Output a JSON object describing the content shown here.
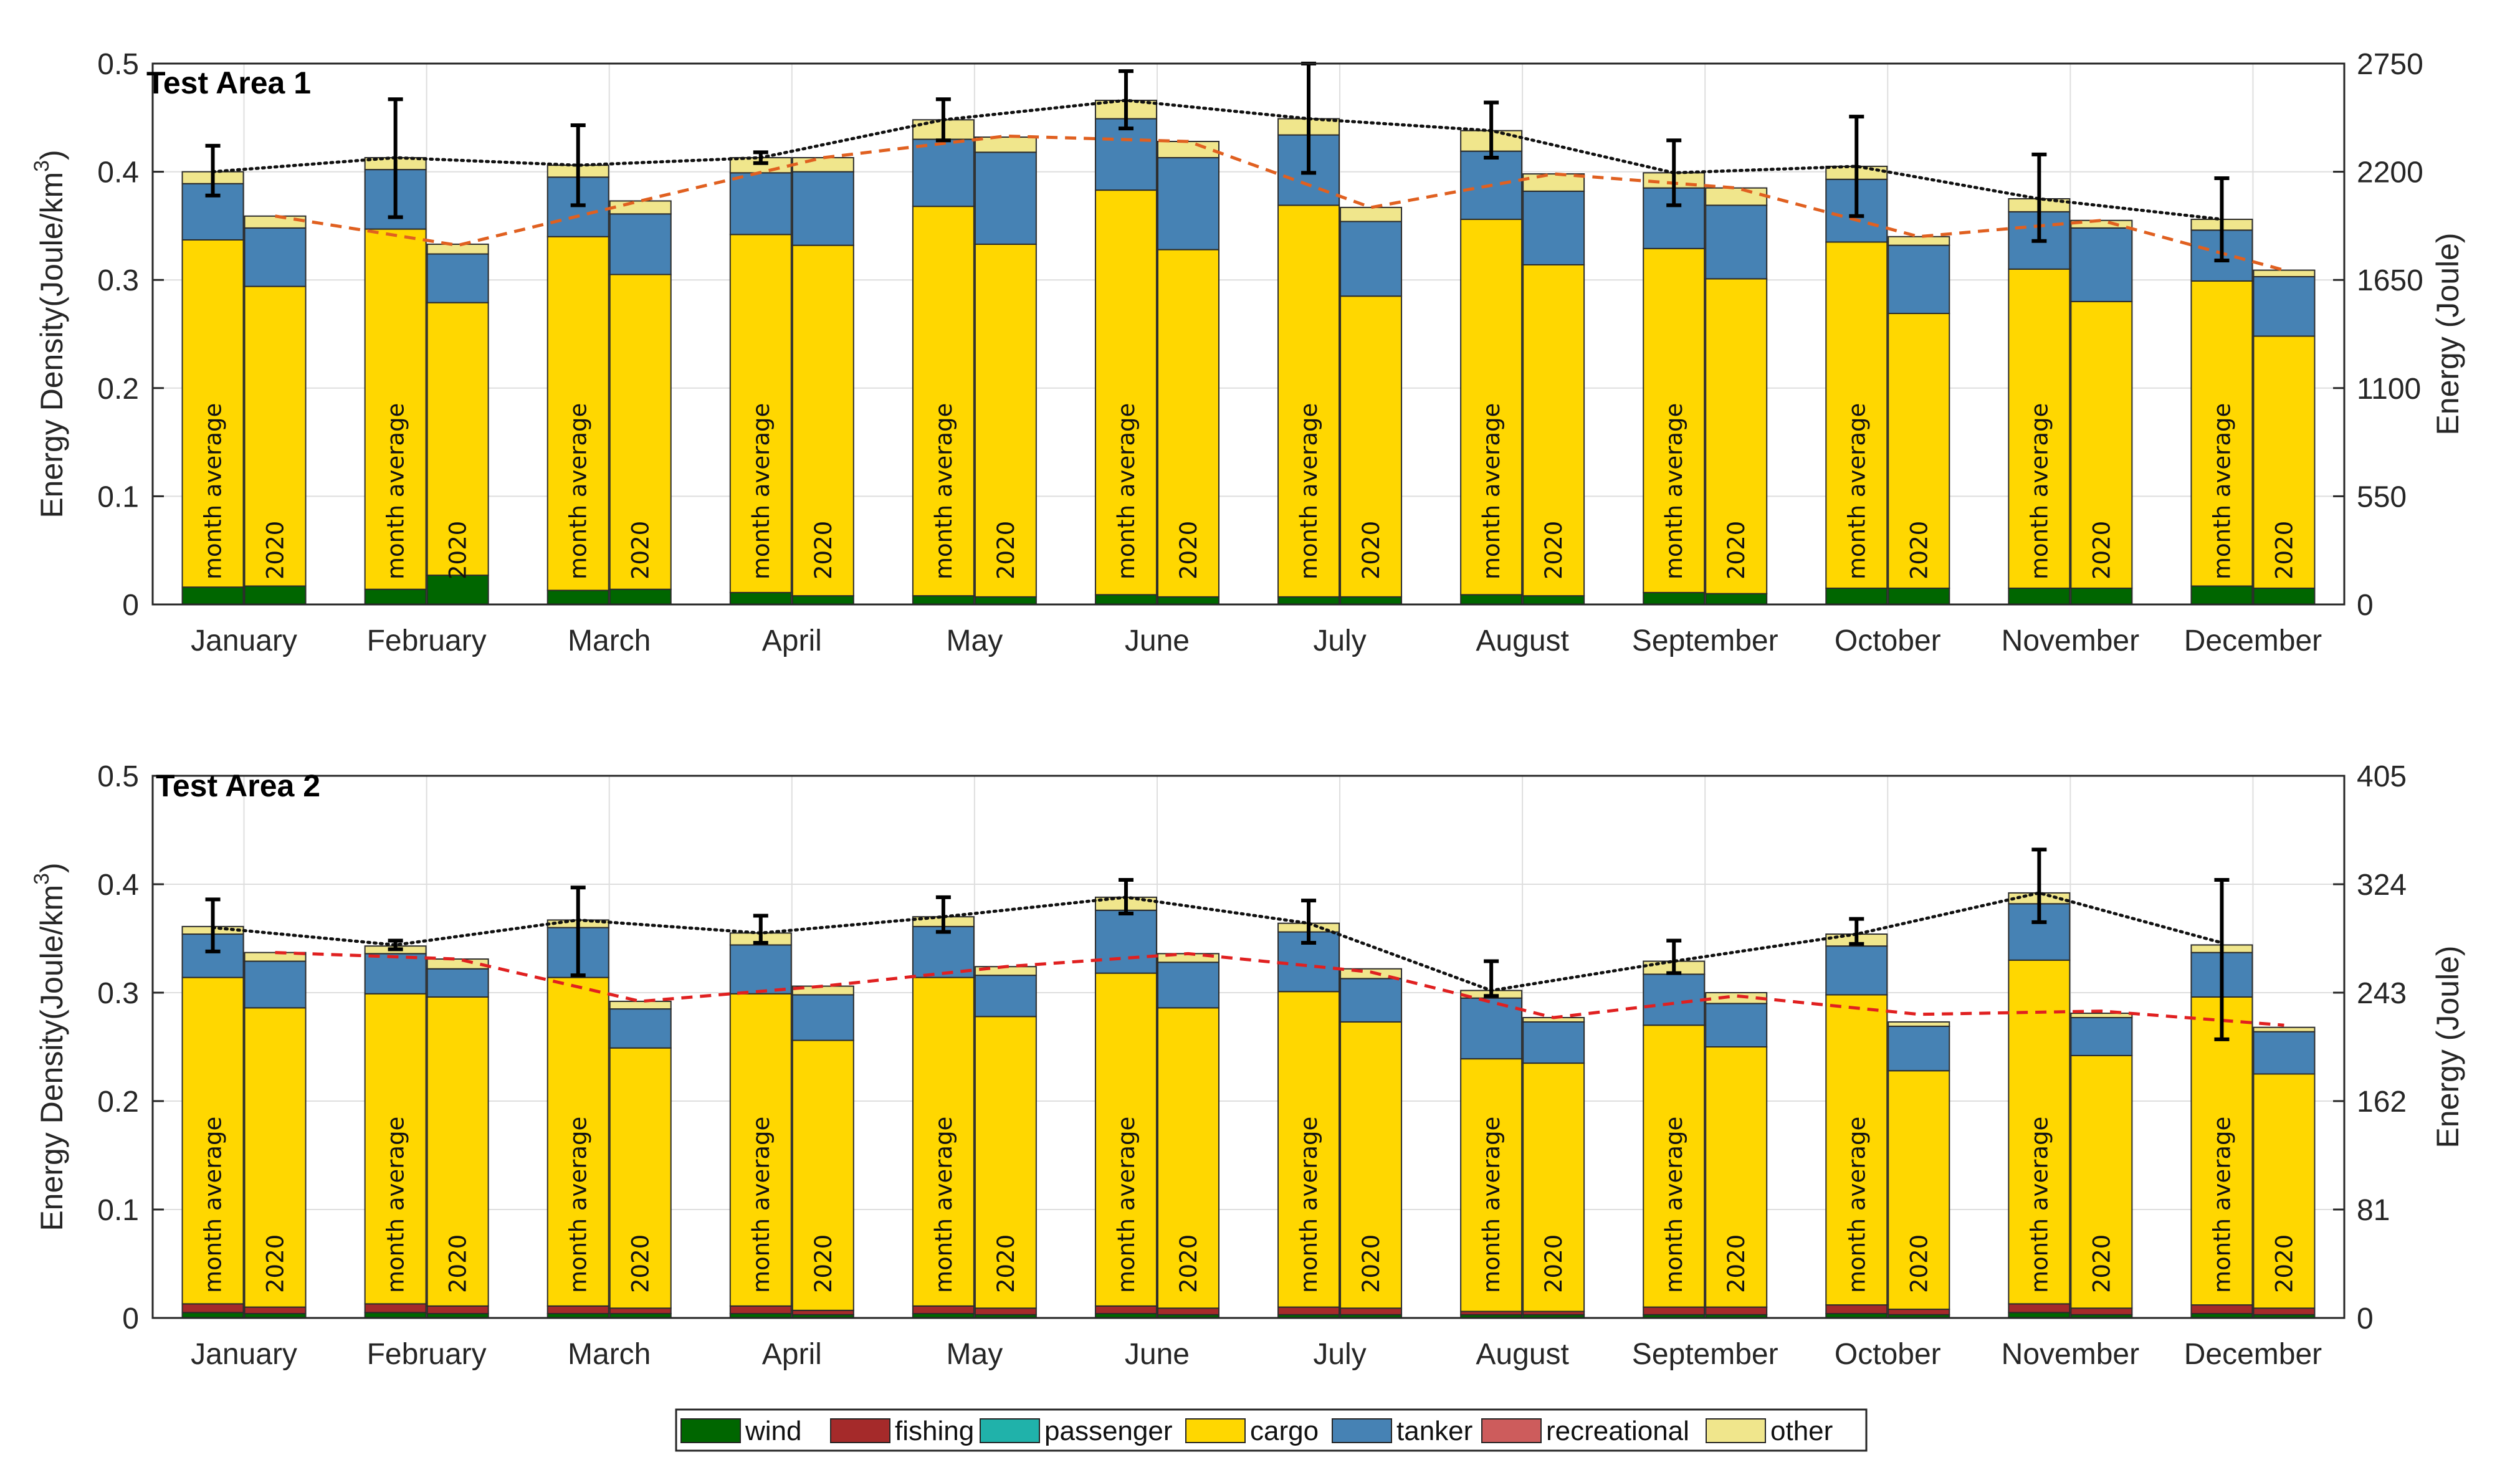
{
  "chart_data": [
    {
      "type": "bar",
      "title": "Test Area 1",
      "ylabel": "Energy Density(Joule/km³)",
      "y2label": "Energy (Joule)",
      "ylim": [
        0,
        0.5
      ],
      "y2lim": [
        0,
        2750
      ],
      "yticks": [
        "0",
        "0.1",
        "0.2",
        "0.3",
        "0.4",
        "0.5"
      ],
      "y2ticks": [
        "0",
        "550",
        "1100",
        "1650",
        "2200",
        "2750"
      ],
      "grid": true,
      "categories": [
        "January",
        "February",
        "March",
        "April",
        "May",
        "June",
        "July",
        "August",
        "September",
        "October",
        "November",
        "December"
      ],
      "bar_labels": [
        "month average",
        "2020"
      ],
      "series_order": [
        "wind",
        "fishing",
        "passenger",
        "cargo",
        "tanker",
        "recreational",
        "other"
      ],
      "month_average": [
        {
          "wind": 0.016,
          "fishing": 0.0,
          "passenger": 0.0,
          "cargo": 0.321,
          "tanker": 0.052,
          "recreational": 0.0,
          "other": 0.011
        },
        {
          "wind": 0.014,
          "fishing": 0.0,
          "passenger": 0.0,
          "cargo": 0.333,
          "tanker": 0.055,
          "recreational": 0.0,
          "other": 0.011
        },
        {
          "wind": 0.013,
          "fishing": 0.0,
          "passenger": 0.0,
          "cargo": 0.327,
          "tanker": 0.055,
          "recreational": 0.0,
          "other": 0.011
        },
        {
          "wind": 0.011,
          "fishing": 0.0,
          "passenger": 0.0,
          "cargo": 0.331,
          "tanker": 0.057,
          "recreational": 0.0,
          "other": 0.014
        },
        {
          "wind": 0.008,
          "fishing": 0.0,
          "passenger": 0.0,
          "cargo": 0.36,
          "tanker": 0.062,
          "recreational": 0.0,
          "other": 0.018
        },
        {
          "wind": 0.009,
          "fishing": 0.0,
          "passenger": 0.0,
          "cargo": 0.374,
          "tanker": 0.066,
          "recreational": 0.0,
          "other": 0.017
        },
        {
          "wind": 0.007,
          "fishing": 0.0,
          "passenger": 0.0,
          "cargo": 0.362,
          "tanker": 0.065,
          "recreational": 0.0,
          "other": 0.015
        },
        {
          "wind": 0.009,
          "fishing": 0.0,
          "passenger": 0.0,
          "cargo": 0.347,
          "tanker": 0.063,
          "recreational": 0.0,
          "other": 0.019
        },
        {
          "wind": 0.011,
          "fishing": 0.0,
          "passenger": 0.0,
          "cargo": 0.318,
          "tanker": 0.056,
          "recreational": 0.0,
          "other": 0.014
        },
        {
          "wind": 0.015,
          "fishing": 0.0,
          "passenger": 0.0,
          "cargo": 0.32,
          "tanker": 0.058,
          "recreational": 0.0,
          "other": 0.012
        },
        {
          "wind": 0.015,
          "fishing": 0.0,
          "passenger": 0.0,
          "cargo": 0.295,
          "tanker": 0.053,
          "recreational": 0.0,
          "other": 0.012
        },
        {
          "wind": 0.017,
          "fishing": 0.0,
          "passenger": 0.0,
          "cargo": 0.282,
          "tanker": 0.047,
          "recreational": 0.0,
          "other": 0.01
        }
      ],
      "year_2020": [
        {
          "wind": 0.017,
          "fishing": 0.0,
          "passenger": 0.0,
          "cargo": 0.277,
          "tanker": 0.054,
          "recreational": 0.0,
          "other": 0.011
        },
        {
          "wind": 0.027,
          "fishing": 0.0,
          "passenger": 0.0,
          "cargo": 0.252,
          "tanker": 0.045,
          "recreational": 0.0,
          "other": 0.009
        },
        {
          "wind": 0.014,
          "fishing": 0.0,
          "passenger": 0.0,
          "cargo": 0.291,
          "tanker": 0.056,
          "recreational": 0.0,
          "other": 0.012
        },
        {
          "wind": 0.008,
          "fishing": 0.0,
          "passenger": 0.0,
          "cargo": 0.324,
          "tanker": 0.068,
          "recreational": 0.0,
          "other": 0.013
        },
        {
          "wind": 0.007,
          "fishing": 0.0,
          "passenger": 0.0,
          "cargo": 0.326,
          "tanker": 0.085,
          "recreational": 0.0,
          "other": 0.014
        },
        {
          "wind": 0.007,
          "fishing": 0.0,
          "passenger": 0.0,
          "cargo": 0.321,
          "tanker": 0.085,
          "recreational": 0.0,
          "other": 0.015
        },
        {
          "wind": 0.007,
          "fishing": 0.0,
          "passenger": 0.0,
          "cargo": 0.278,
          "tanker": 0.069,
          "recreational": 0.0,
          "other": 0.013
        },
        {
          "wind": 0.008,
          "fishing": 0.0,
          "passenger": 0.0,
          "cargo": 0.306,
          "tanker": 0.068,
          "recreational": 0.0,
          "other": 0.016
        },
        {
          "wind": 0.01,
          "fishing": 0.0,
          "passenger": 0.0,
          "cargo": 0.291,
          "tanker": 0.068,
          "recreational": 0.0,
          "other": 0.016
        },
        {
          "wind": 0.015,
          "fishing": 0.0,
          "passenger": 0.0,
          "cargo": 0.254,
          "tanker": 0.063,
          "recreational": 0.0,
          "other": 0.008
        },
        {
          "wind": 0.015,
          "fishing": 0.0,
          "passenger": 0.0,
          "cargo": 0.265,
          "tanker": 0.068,
          "recreational": 0.0,
          "other": 0.007
        },
        {
          "wind": 0.015,
          "fishing": 0.0,
          "passenger": 0.0,
          "cargo": 0.233,
          "tanker": 0.055,
          "recreational": 0.0,
          "other": 0.006
        }
      ],
      "error_bars": [
        {
          "center": 0.4,
          "low": 0.378,
          "high": 0.424
        },
        {
          "center": 0.413,
          "low": 0.358,
          "high": 0.467
        },
        {
          "center": 0.406,
          "low": 0.369,
          "high": 0.443
        },
        {
          "center": 0.413,
          "low": 0.408,
          "high": 0.418
        },
        {
          "center": 0.448,
          "low": 0.429,
          "high": 0.467
        },
        {
          "center": 0.466,
          "low": 0.44,
          "high": 0.493
        },
        {
          "center": 0.449,
          "low": 0.399,
          "high": 0.5
        },
        {
          "center": 0.438,
          "low": 0.413,
          "high": 0.464
        },
        {
          "center": 0.399,
          "low": 0.369,
          "high": 0.429
        },
        {
          "center": 0.405,
          "low": 0.359,
          "high": 0.451
        },
        {
          "center": 0.375,
          "low": 0.336,
          "high": 0.416
        },
        {
          "center": 0.356,
          "low": 0.318,
          "high": 0.394
        }
      ],
      "red_dashed_line": [
        0.359,
        0.332,
        0.373,
        0.413,
        0.433,
        0.428,
        0.367,
        0.398,
        0.385,
        0.34,
        0.355,
        0.309
      ],
      "legend": "bottom"
    },
    {
      "type": "bar",
      "title": "Test Area 2",
      "ylabel": "Energy Density(Joule/km³)",
      "y2label": "Energy (Joule)",
      "ylim": [
        0,
        0.5
      ],
      "y2lim": [
        0,
        405
      ],
      "yticks": [
        "0",
        "0.1",
        "0.2",
        "0.3",
        "0.4",
        "0.5"
      ],
      "y2ticks": [
        "0",
        "81",
        "162",
        "243",
        "324",
        "405"
      ],
      "grid": true,
      "categories": [
        "January",
        "February",
        "March",
        "April",
        "May",
        "June",
        "July",
        "August",
        "September",
        "October",
        "November",
        "December"
      ],
      "bar_labels": [
        "month average",
        "2020"
      ],
      "series_order": [
        "wind",
        "fishing",
        "passenger",
        "cargo",
        "tanker",
        "recreational",
        "other"
      ],
      "month_average": [
        {
          "wind": 0.005,
          "fishing": 0.008,
          "passenger": 0.0,
          "cargo": 0.301,
          "tanker": 0.04,
          "recreational": 0.0,
          "other": 0.007
        },
        {
          "wind": 0.005,
          "fishing": 0.008,
          "passenger": 0.0,
          "cargo": 0.286,
          "tanker": 0.037,
          "recreational": 0.0,
          "other": 0.007
        },
        {
          "wind": 0.004,
          "fishing": 0.007,
          "passenger": 0.0,
          "cargo": 0.303,
          "tanker": 0.046,
          "recreational": 0.0,
          "other": 0.007
        },
        {
          "wind": 0.004,
          "fishing": 0.007,
          "passenger": 0.0,
          "cargo": 0.288,
          "tanker": 0.045,
          "recreational": 0.0,
          "other": 0.011
        },
        {
          "wind": 0.004,
          "fishing": 0.007,
          "passenger": 0.0,
          "cargo": 0.303,
          "tanker": 0.047,
          "recreational": 0.0,
          "other": 0.009
        },
        {
          "wind": 0.004,
          "fishing": 0.007,
          "passenger": 0.0,
          "cargo": 0.307,
          "tanker": 0.058,
          "recreational": 0.0,
          "other": 0.012
        },
        {
          "wind": 0.003,
          "fishing": 0.007,
          "passenger": 0.0,
          "cargo": 0.291,
          "tanker": 0.055,
          "recreational": 0.0,
          "other": 0.008
        },
        {
          "wind": 0.003,
          "fishing": 0.003,
          "passenger": 0.0,
          "cargo": 0.233,
          "tanker": 0.056,
          "recreational": 0.0,
          "other": 0.007
        },
        {
          "wind": 0.003,
          "fishing": 0.007,
          "passenger": 0.0,
          "cargo": 0.26,
          "tanker": 0.047,
          "recreational": 0.0,
          "other": 0.012
        },
        {
          "wind": 0.004,
          "fishing": 0.008,
          "passenger": 0.0,
          "cargo": 0.286,
          "tanker": 0.045,
          "recreational": 0.0,
          "other": 0.011
        },
        {
          "wind": 0.005,
          "fishing": 0.008,
          "passenger": 0.0,
          "cargo": 0.317,
          "tanker": 0.052,
          "recreational": 0.0,
          "other": 0.01
        },
        {
          "wind": 0.004,
          "fishing": 0.008,
          "passenger": 0.0,
          "cargo": 0.284,
          "tanker": 0.041,
          "recreational": 0.0,
          "other": 0.007
        }
      ],
      "year_2020": [
        {
          "wind": 0.004,
          "fishing": 0.006,
          "passenger": 0.0,
          "cargo": 0.276,
          "tanker": 0.043,
          "recreational": 0.0,
          "other": 0.008
        },
        {
          "wind": 0.004,
          "fishing": 0.007,
          "passenger": 0.0,
          "cargo": 0.285,
          "tanker": 0.026,
          "recreational": 0.0,
          "other": 0.009
        },
        {
          "wind": 0.004,
          "fishing": 0.005,
          "passenger": 0.0,
          "cargo": 0.24,
          "tanker": 0.036,
          "recreational": 0.0,
          "other": 0.007
        },
        {
          "wind": 0.003,
          "fishing": 0.004,
          "passenger": 0.0,
          "cargo": 0.249,
          "tanker": 0.042,
          "recreational": 0.0,
          "other": 0.008
        },
        {
          "wind": 0.003,
          "fishing": 0.006,
          "passenger": 0.0,
          "cargo": 0.269,
          "tanker": 0.038,
          "recreational": 0.0,
          "other": 0.008
        },
        {
          "wind": 0.003,
          "fishing": 0.006,
          "passenger": 0.0,
          "cargo": 0.277,
          "tanker": 0.042,
          "recreational": 0.0,
          "other": 0.008
        },
        {
          "wind": 0.003,
          "fishing": 0.006,
          "passenger": 0.0,
          "cargo": 0.264,
          "tanker": 0.04,
          "recreational": 0.0,
          "other": 0.009
        },
        {
          "wind": 0.003,
          "fishing": 0.003,
          "passenger": 0.0,
          "cargo": 0.229,
          "tanker": 0.038,
          "recreational": 0.0,
          "other": 0.004
        },
        {
          "wind": 0.003,
          "fishing": 0.007,
          "passenger": 0.0,
          "cargo": 0.24,
          "tanker": 0.04,
          "recreational": 0.0,
          "other": 0.01
        },
        {
          "wind": 0.003,
          "fishing": 0.005,
          "passenger": 0.0,
          "cargo": 0.22,
          "tanker": 0.041,
          "recreational": 0.0,
          "other": 0.004
        },
        {
          "wind": 0.003,
          "fishing": 0.006,
          "passenger": 0.0,
          "cargo": 0.233,
          "tanker": 0.035,
          "recreational": 0.0,
          "other": 0.004
        },
        {
          "wind": 0.003,
          "fishing": 0.006,
          "passenger": 0.0,
          "cargo": 0.216,
          "tanker": 0.039,
          "recreational": 0.0,
          "other": 0.004
        }
      ],
      "error_bars": [
        {
          "center": 0.36,
          "low": 0.338,
          "high": 0.386
        },
        {
          "center": 0.344,
          "low": 0.34,
          "high": 0.348
        },
        {
          "center": 0.367,
          "low": 0.316,
          "high": 0.397
        },
        {
          "center": 0.355,
          "low": 0.346,
          "high": 0.371
        },
        {
          "center": 0.37,
          "low": 0.356,
          "high": 0.388
        },
        {
          "center": 0.388,
          "low": 0.373,
          "high": 0.404
        },
        {
          "center": 0.364,
          "low": 0.346,
          "high": 0.385
        },
        {
          "center": 0.302,
          "low": 0.297,
          "high": 0.329
        },
        {
          "center": 0.329,
          "low": 0.318,
          "high": 0.348
        },
        {
          "center": 0.354,
          "low": 0.345,
          "high": 0.368
        },
        {
          "center": 0.392,
          "low": 0.365,
          "high": 0.432
        },
        {
          "center": 0.346,
          "low": 0.257,
          "high": 0.404
        }
      ],
      "red_dashed_line": [
        0.337,
        0.331,
        0.292,
        0.306,
        0.324,
        0.336,
        0.319,
        0.277,
        0.297,
        0.28,
        0.283,
        0.27
      ],
      "legend": "bottom"
    }
  ],
  "legend": [
    {
      "name": "wind",
      "color": "#006600"
    },
    {
      "name": "fishing",
      "color": "#A52A2A"
    },
    {
      "name": "passenger",
      "color": "#20B2AA"
    },
    {
      "name": "cargo",
      "color": "#FFD700"
    },
    {
      "name": "tanker",
      "color": "#4682B4"
    },
    {
      "name": "recreational",
      "color": "#CD5C5C"
    },
    {
      "name": "other",
      "color": "#F0E68C"
    }
  ],
  "colors": {
    "black_dotted_line": "#111111",
    "red_dashed_line_top": "#E06020",
    "red_dashed_line_bottom": "#E02020",
    "grid": "#DEDEDE",
    "error_bar": "#000000"
  }
}
